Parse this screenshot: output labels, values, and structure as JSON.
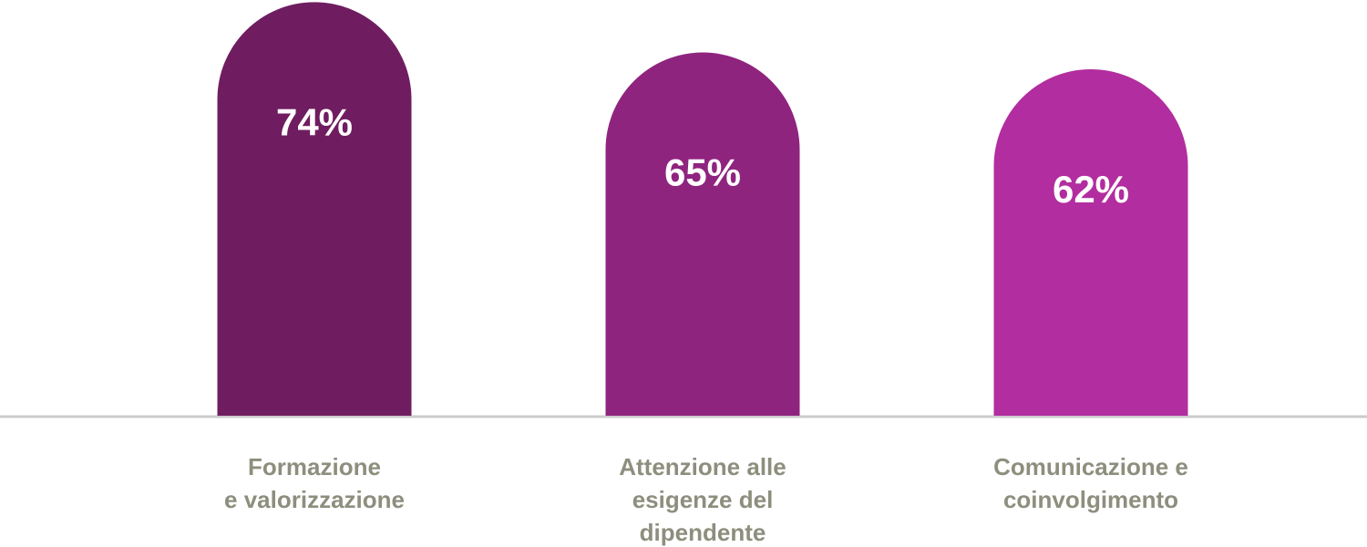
{
  "chart_data": {
    "type": "bar",
    "categories": [
      "Formazione\ne valorizzazione",
      "Attenzione alle\nesigenze del\ndipendente",
      "Comunicazione e\ncoinvolgimento"
    ],
    "values": [
      74,
      65,
      62
    ],
    "value_labels": [
      "74%",
      "65%",
      "62%"
    ],
    "colors": [
      "#6f1d60",
      "#8f247f",
      "#b22d9f"
    ]
  }
}
